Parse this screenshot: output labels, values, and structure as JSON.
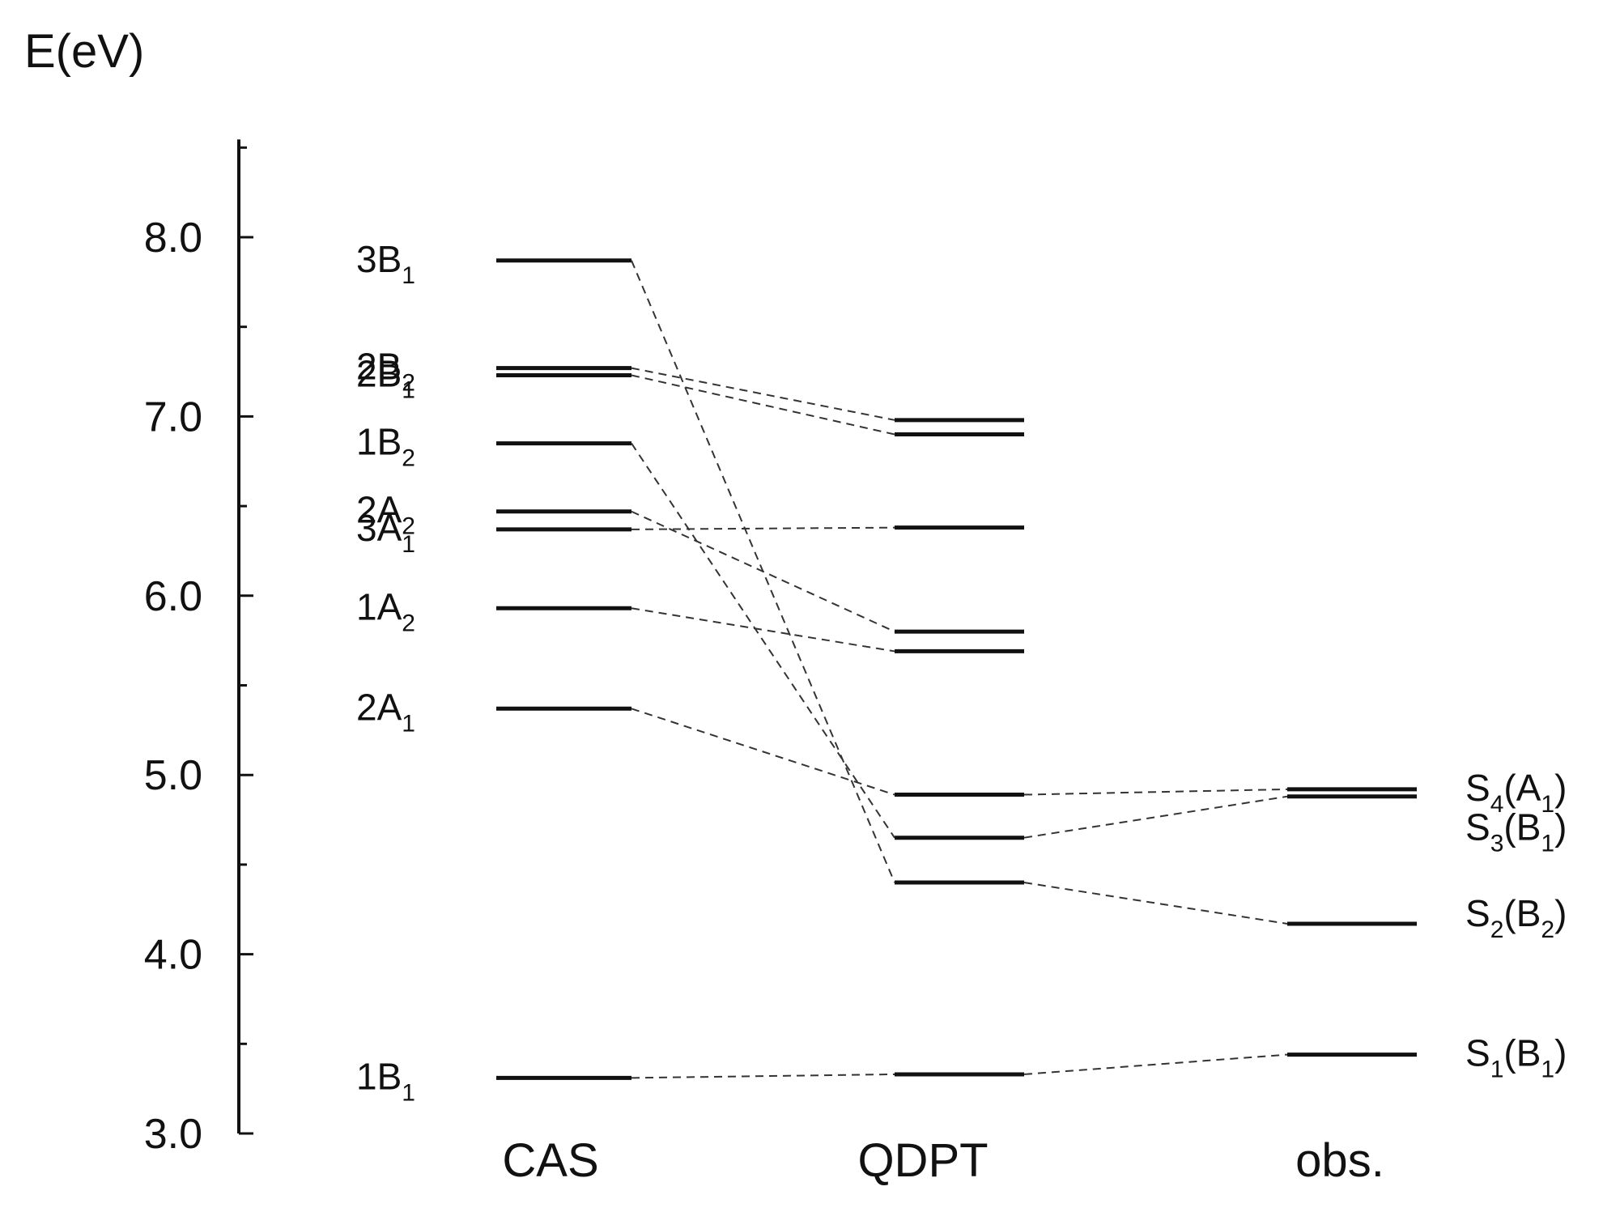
{
  "chart_data": {
    "type": "energy-level-diagram",
    "ylabel": "E(eV)",
    "ylim": [
      3.0,
      8.5
    ],
    "yticks": [
      "3.0",
      "4.0",
      "5.0",
      "6.0",
      "7.0",
      "8.0"
    ],
    "columns": [
      "CAS",
      "QDPT",
      "obs."
    ],
    "levels": [
      {
        "state": "3B1",
        "base": "3B",
        "sub": "1",
        "CAS": 7.87,
        "QDPT": 4.4,
        "obs": 4.17,
        "obs_label": "S2(B2)"
      },
      {
        "state": "2B2",
        "base": "2B",
        "sub": "2",
        "CAS": 7.27,
        "QDPT": 6.98,
        "obs": null
      },
      {
        "state": "2B1",
        "base": "2B",
        "sub": "1",
        "CAS": 7.23,
        "QDPT": 6.9,
        "obs": null
      },
      {
        "state": "1B2",
        "base": "1B",
        "sub": "2",
        "CAS": 6.85,
        "QDPT": 4.65,
        "obs": 4.88,
        "obs_label": "S3(B1)"
      },
      {
        "state": "2A2",
        "base": "2A",
        "sub": "2",
        "CAS": 6.47,
        "QDPT": 5.8,
        "obs": null
      },
      {
        "state": "3A1",
        "base": "3A",
        "sub": "1",
        "CAS": 6.37,
        "QDPT": 6.38,
        "obs": null
      },
      {
        "state": "1A2",
        "base": "1A",
        "sub": "2",
        "CAS": 5.93,
        "QDPT": 5.69,
        "obs": null
      },
      {
        "state": "2A1",
        "base": "2A",
        "sub": "1",
        "CAS": 5.37,
        "QDPT": 4.89,
        "obs": 4.92,
        "obs_label": "S4(A1)"
      },
      {
        "state": "1B1",
        "base": "1B",
        "sub": "1",
        "CAS": 3.31,
        "QDPT": 3.33,
        "obs": 3.44,
        "obs_label": "S1(B1)"
      }
    ],
    "obs_labels": [
      {
        "base": "S",
        "sub": "4",
        "sym": "A",
        "symsub": "1",
        "y": 4.92
      },
      {
        "base": "S",
        "sub": "3",
        "sym": "B",
        "symsub": "1",
        "y": 4.7
      },
      {
        "base": "S",
        "sub": "2",
        "sym": "B",
        "symsub": "2",
        "y": 4.22
      },
      {
        "base": "S",
        "sub": "1",
        "sym": "B",
        "symsub": "1",
        "y": 3.44
      }
    ]
  }
}
